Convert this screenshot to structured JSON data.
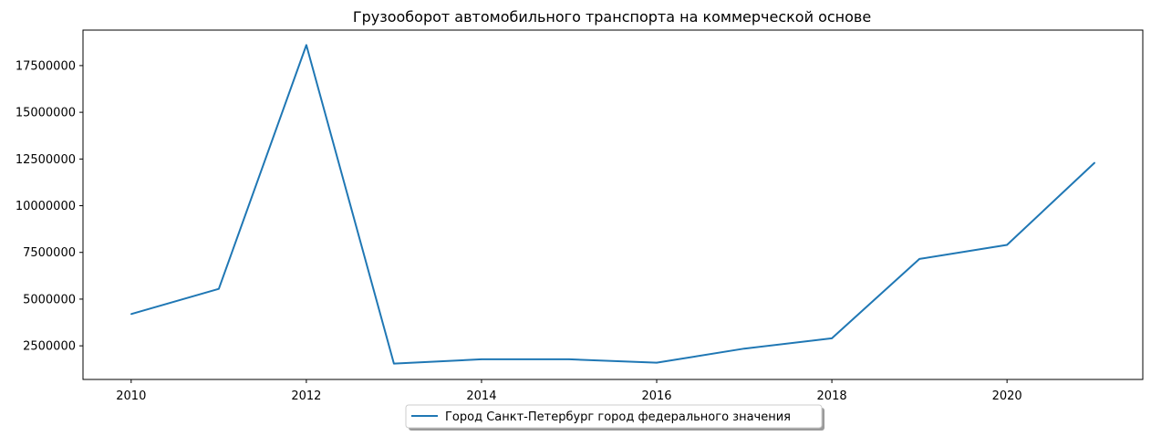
{
  "chart_data": {
    "type": "line",
    "title": "Грузооборот автомобильного транспорта на коммерческой основе",
    "xlabel": "",
    "ylabel": "",
    "xlim": [
      2009.45,
      2021.55
    ],
    "ylim": [
      700000,
      19400000
    ],
    "x_ticks": [
      2010,
      2012,
      2014,
      2016,
      2018,
      2020
    ],
    "x_tick_labels": [
      "2010",
      "2012",
      "2014",
      "2016",
      "2018",
      "2020"
    ],
    "y_ticks": [
      2500000,
      5000000,
      7500000,
      10000000,
      12500000,
      15000000,
      17500000
    ],
    "y_tick_labels": [
      "2500000",
      "5000000",
      "7500000",
      "10000000",
      "12500000",
      "15000000",
      "17500000"
    ],
    "grid": false,
    "legend_position": "bottom-center",
    "series": [
      {
        "name": "Город Санкт-Петербург город федерального значения",
        "color": "#1f77b4",
        "x": [
          2010,
          2011,
          2012,
          2013,
          2014,
          2015,
          2016,
          2017,
          2018,
          2019,
          2020,
          2021
        ],
        "values": [
          4200000,
          5550000,
          18600000,
          1550000,
          1780000,
          1780000,
          1600000,
          2350000,
          2900000,
          7150000,
          7900000,
          12300000
        ]
      }
    ]
  }
}
